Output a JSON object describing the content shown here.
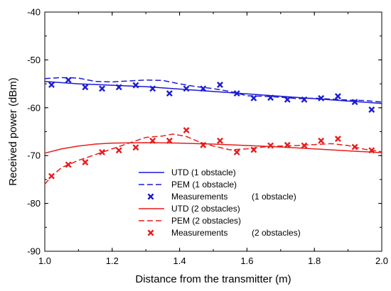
{
  "chart_data": {
    "type": "line",
    "xlabel": "Distance from the transmitter (m)",
    "ylabel": "Received power (dBm)",
    "xlim": [
      1.0,
      2.0
    ],
    "ylim": [
      -90,
      -40
    ],
    "xticks": [
      1.0,
      1.2,
      1.4,
      1.6,
      1.8,
      2.0
    ],
    "xtick_labels": [
      "1.0",
      "1.2",
      "1.4",
      "1.6",
      "1.8",
      "2.0"
    ],
    "yticks": [
      -90,
      -80,
      -70,
      -60,
      -50,
      -40
    ],
    "ytick_labels": [
      "-90",
      "-80",
      "-70",
      "-60",
      "-50",
      "-40"
    ],
    "grid": false,
    "legend_position": "bottom-center",
    "series": [
      {
        "name": "UTD (1 obstacle)",
        "style": "solid",
        "color": "#1a1ad6",
        "x": [
          1.0,
          1.1,
          1.2,
          1.3,
          1.4,
          1.5,
          1.6,
          1.7,
          1.8,
          1.9,
          2.0
        ],
        "y": [
          -54.5,
          -55.0,
          -55.3,
          -55.6,
          -56.1,
          -56.6,
          -57.1,
          -57.6,
          -58.1,
          -58.6,
          -59.1
        ]
      },
      {
        "name": "PEM (1 obstacle)",
        "style": "dashed",
        "color": "#1a1ad6",
        "x": [
          1.0,
          1.05,
          1.1,
          1.15,
          1.2,
          1.25,
          1.3,
          1.35,
          1.4,
          1.45,
          1.5,
          1.55,
          1.6,
          1.65,
          1.7,
          1.75,
          1.8,
          1.85,
          1.9,
          1.95,
          2.0
        ],
        "y": [
          -53.9,
          -53.7,
          -53.8,
          -54.5,
          -54.6,
          -54.4,
          -54.2,
          -54.3,
          -55.0,
          -55.6,
          -56.0,
          -56.6,
          -57.5,
          -57.6,
          -57.8,
          -58.1,
          -58.0,
          -58.2,
          -58.4,
          -58.5,
          -58.8
        ]
      },
      {
        "name": "Measurements (1 obstacle)",
        "style": "marker",
        "color": "#1a1ad6",
        "x": [
          1.02,
          1.07,
          1.12,
          1.17,
          1.22,
          1.27,
          1.32,
          1.37,
          1.42,
          1.47,
          1.52,
          1.57,
          1.62,
          1.67,
          1.72,
          1.77,
          1.82,
          1.87,
          1.92,
          1.97
        ],
        "y": [
          -55.2,
          -54.2,
          -55.7,
          -56.0,
          -55.7,
          -55.3,
          -56.0,
          -57.0,
          -56.0,
          -56.0,
          -55.2,
          -57.0,
          -58.0,
          -57.9,
          -58.3,
          -58.3,
          -58.0,
          -57.6,
          -58.8,
          -60.4
        ]
      },
      {
        "name": "UTD (2 obstacles)",
        "style": "solid",
        "color": "#e81c1c",
        "x": [
          1.0,
          1.05,
          1.1,
          1.15,
          1.2,
          1.3,
          1.4,
          1.5,
          1.6,
          1.7,
          1.8,
          1.9,
          2.0
        ],
        "y": [
          -69.5,
          -68.6,
          -68.0,
          -67.6,
          -67.4,
          -67.3,
          -67.4,
          -67.6,
          -67.9,
          -68.2,
          -68.6,
          -69.0,
          -69.4
        ]
      },
      {
        "name": "PEM (2 obstacles)",
        "style": "dashed",
        "color": "#e81c1c",
        "x": [
          1.0,
          1.02,
          1.05,
          1.1,
          1.15,
          1.2,
          1.25,
          1.3,
          1.35,
          1.38,
          1.42,
          1.46,
          1.5,
          1.55,
          1.6,
          1.65,
          1.7,
          1.75,
          1.8,
          1.85,
          1.9,
          1.95,
          2.0
        ],
        "y": [
          -76.0,
          -74.3,
          -72.5,
          -71.0,
          -69.8,
          -68.6,
          -67.4,
          -66.2,
          -65.9,
          -65.5,
          -66.0,
          -67.2,
          -68.0,
          -68.8,
          -68.6,
          -68.2,
          -68.0,
          -67.9,
          -67.7,
          -67.5,
          -67.9,
          -68.7,
          -69.2
        ]
      },
      {
        "name": "Measurements (2 obstacles)",
        "style": "marker",
        "color": "#e81c1c",
        "x": [
          1.02,
          1.07,
          1.12,
          1.17,
          1.22,
          1.27,
          1.32,
          1.37,
          1.42,
          1.47,
          1.52,
          1.57,
          1.62,
          1.67,
          1.72,
          1.77,
          1.82,
          1.87,
          1.92,
          1.97
        ],
        "y": [
          -74.3,
          -71.9,
          -71.4,
          -69.3,
          -68.9,
          -68.3,
          -66.9,
          -66.9,
          -64.7,
          -67.8,
          -66.9,
          -69.3,
          -68.8,
          -67.9,
          -67.8,
          -67.9,
          -66.9,
          -66.5,
          -68.2,
          -68.9
        ]
      }
    ],
    "legend": [
      {
        "label": "UTD (1 obstacle)",
        "style": "solid",
        "color": "#1a1ad6"
      },
      {
        "label": "PEM (1 obstacle)",
        "style": "dashed",
        "color": "#1a1ad6"
      },
      {
        "label": "Measurements",
        "suffix": "(1 obstacle)",
        "style": "marker",
        "color": "#1a1ad6"
      },
      {
        "label": "UTD (2 obstacles)",
        "style": "solid",
        "color": "#e81c1c"
      },
      {
        "label": "PEM (2 obstacles)",
        "style": "dashed",
        "color": "#e81c1c"
      },
      {
        "label": "Measurements",
        "suffix": "(2 obstacles)",
        "style": "marker",
        "color": "#e81c1c"
      }
    ]
  }
}
